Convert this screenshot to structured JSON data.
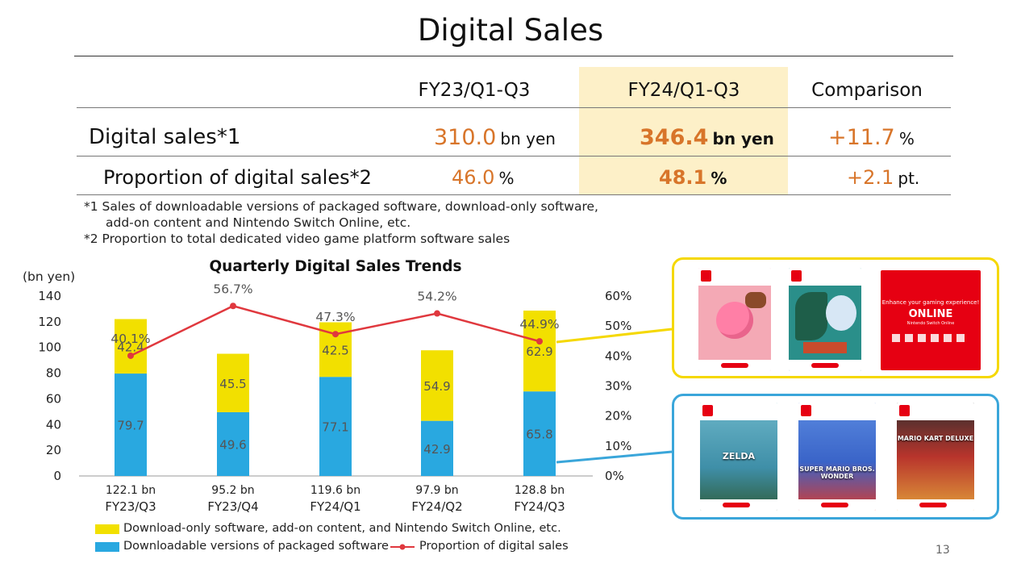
{
  "title": "Digital Sales",
  "table": {
    "headers": [
      "FY23/Q1-Q3",
      "FY24/Q1-Q3",
      "Comparison"
    ],
    "rows": [
      {
        "label": "Digital sales*1",
        "fy23": "310.0",
        "fy23_unit": "bn yen",
        "fy24": "346.4",
        "fy24_unit": "bn yen",
        "comp": "+11.7",
        "comp_unit": "%"
      },
      {
        "label": "Proportion of digital sales*2",
        "fy23": "46.0",
        "fy23_unit": "%",
        "fy24": "48.1",
        "fy24_unit": "%",
        "comp": "+2.1",
        "comp_unit": "pt."
      }
    ]
  },
  "footnotes": {
    "f1_line1": "*1 Sales of downloadable versions of packaged software, download-only software,",
    "f1_line2": "add-on content and Nintendo Switch Online, etc.",
    "f2": "*2 Proportion to total dedicated video game platform software sales"
  },
  "chart_data": {
    "type": "bar",
    "title": "Quarterly Digital Sales Trends",
    "ylabel": "(bn yen)",
    "ylim": [
      0,
      140
    ],
    "y_ticks": [
      "0",
      "20",
      "40",
      "60",
      "80",
      "100",
      "120",
      "140"
    ],
    "y2lim": [
      0,
      60
    ],
    "y2_ticks": [
      "0%",
      "10%",
      "20%",
      "30%",
      "40%",
      "50%",
      "60%"
    ],
    "categories": [
      "FY23/Q3",
      "FY23/Q4",
      "FY24/Q1",
      "FY24/Q2",
      "FY24/Q3"
    ],
    "totals": [
      "122.1 bn",
      "95.2 bn",
      "119.6 bn",
      "97.9 bn",
      "128.8 bn"
    ],
    "series": [
      {
        "name": "Downloadable versions of packaged software",
        "values": [
          79.7,
          49.6,
          77.1,
          42.9,
          65.8
        ],
        "color": "#29a8e0"
      },
      {
        "name": "Download-only software, add-on content, and Nintendo Switch Online, etc.",
        "values": [
          42.4,
          45.5,
          42.5,
          54.9,
          62.9
        ],
        "color": "#f2e000"
      }
    ],
    "line": {
      "name": "Proportion of digital sales",
      "values": [
        40.1,
        56.7,
        47.3,
        54.2,
        44.9
      ],
      "labels": [
        "40.1%",
        "56.7%",
        "47.3%",
        "54.2%",
        "44.9%"
      ],
      "color": "#e0383e"
    },
    "legend": "bottom"
  },
  "panels": {
    "top_color": "#f5d800",
    "bottom_color": "#3aa6da",
    "top_cards": [
      {
        "icon": "kirby-dream-buffet-card-icon",
        "bg": "#f4a9b5"
      },
      {
        "icon": "pokemon-dlc-card-icon",
        "bg": "#2a8f8a"
      },
      {
        "icon": "nintendo-switch-online-card-icon",
        "bg": "#e60012"
      }
    ],
    "online_card": {
      "tagline": "Enhance your gaming experience!",
      "brand": "ONLINE",
      "sub": "Nintendo Switch Online"
    },
    "bottom_cards": [
      {
        "icon": "zelda-card-icon",
        "bg": "#3f8fa8",
        "label": "ZELDA"
      },
      {
        "icon": "mario-wonder-card-icon",
        "bg": "#3a64c8",
        "label": "SUPER MARIO BROS. WONDER"
      },
      {
        "icon": "mario-kart-card-icon",
        "bg": "#b8342c",
        "label": "MARIO KART DELUXE"
      }
    ]
  },
  "page_number": "13"
}
